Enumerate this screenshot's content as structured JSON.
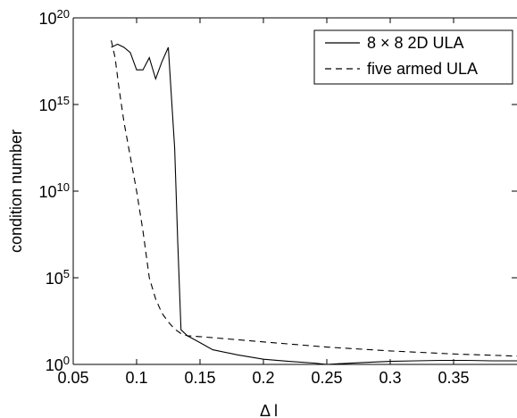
{
  "chart_data": {
    "type": "line",
    "xlabel": "Δ l",
    "ylabel": "condition number",
    "xlim": [
      0.05,
      0.4
    ],
    "ylim": [
      1,
      1e+20
    ],
    "yscale": "log",
    "grid": false,
    "legend_position": "top-right",
    "x_ticks": [
      "0.05",
      "0.1",
      "0.15",
      "0.2",
      "0.25",
      "0.3",
      "0.35"
    ],
    "x_tick_values": [
      0.05,
      0.1,
      0.15,
      0.2,
      0.25,
      0.3,
      0.35
    ],
    "y_ticks": [
      {
        "base": "10",
        "exp": "0"
      },
      {
        "base": "10",
        "exp": "5"
      },
      {
        "base": "10",
        "exp": "10"
      },
      {
        "base": "10",
        "exp": "15"
      },
      {
        "base": "10",
        "exp": "20"
      }
    ],
    "y_tick_values": [
      1,
      100000.0,
      10000000000.0,
      1000000000000000.0,
      1e+20
    ],
    "series": [
      {
        "name": "8 × 8 2D ULA",
        "style": "solid",
        "color": "#000000",
        "x": [
          0.08,
          0.085,
          0.09,
          0.095,
          0.1,
          0.105,
          0.11,
          0.115,
          0.12,
          0.125,
          0.13,
          0.1325,
          0.135,
          0.14,
          0.15,
          0.16,
          0.18,
          0.2,
          0.22,
          0.24,
          0.25,
          0.26,
          0.28,
          0.3,
          0.32,
          0.34,
          0.36,
          0.38,
          0.4
        ],
        "y": [
          2e+18,
          3e+18,
          2e+18,
          1e+18,
          1e+17,
          1e+17,
          5e+17,
          3e+16,
          3e+17,
          2e+18,
          3000000000000.0,
          10000000.0,
          100.0,
          45,
          18,
          7,
          3.5,
          2,
          1.5,
          1.2,
          1,
          1.1,
          1.3,
          1.5,
          1.6,
          1.7,
          1.7,
          1.6,
          1.6
        ]
      },
      {
        "name": "five armed ULA",
        "style": "dashed",
        "color": "#000000",
        "x": [
          0.08,
          0.083,
          0.086,
          0.09,
          0.095,
          0.1,
          0.105,
          0.11,
          0.115,
          0.12,
          0.125,
          0.13,
          0.135,
          0.14,
          0.15,
          0.2,
          0.25,
          0.3,
          0.35,
          0.4
        ],
        "y": [
          5e+18,
          5e+17,
          1e+16,
          100000000000000.0,
          1000000000000.0,
          10000000000.0,
          50000000.0,
          100000.0,
          6000.0,
          900,
          280,
          110,
          60,
          45,
          40,
          20,
          10,
          6,
          4,
          3
        ]
      }
    ]
  }
}
